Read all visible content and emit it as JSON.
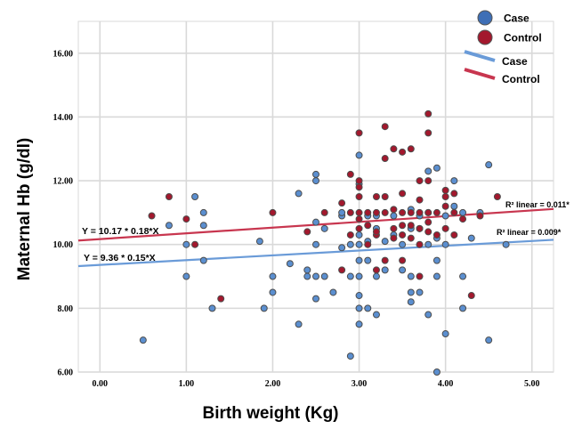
{
  "chart_data": {
    "type": "scatter",
    "xlabel": "Birth weight (Kg)",
    "ylabel": "Maternal Hb (g/dl)",
    "xlim": [
      -0.25,
      5.25
    ],
    "ylim": [
      6.0,
      17.0
    ],
    "x_ticks": [
      "0.00",
      "1.00",
      "2.00",
      "3.00",
      "4.00",
      "5.00"
    ],
    "y_ticks": [
      "6.00",
      "8.00",
      "10.00",
      "12.00",
      "14.00",
      "16.00"
    ],
    "grid": true,
    "legend_position": "top-right",
    "colors": {
      "case": "#3e6fb6",
      "case_line": "#6a9bd8",
      "control": "#a3182d",
      "control_line": "#c8364f"
    },
    "series": [
      {
        "name": "Case",
        "points": [
          [
            0.5,
            7.0
          ],
          [
            0.8,
            10.6
          ],
          [
            1.0,
            9.0
          ],
          [
            1.0,
            10.0
          ],
          [
            1.1,
            11.5
          ],
          [
            1.2,
            11.0
          ],
          [
            1.2,
            10.6
          ],
          [
            1.2,
            9.5
          ],
          [
            1.3,
            8.0
          ],
          [
            1.85,
            10.1
          ],
          [
            1.9,
            8.0
          ],
          [
            2.0,
            8.5
          ],
          [
            2.0,
            9.0
          ],
          [
            2.2,
            9.4
          ],
          [
            2.3,
            7.5
          ],
          [
            2.3,
            11.6
          ],
          [
            2.4,
            9.0
          ],
          [
            2.4,
            9.2
          ],
          [
            2.5,
            12.2
          ],
          [
            2.5,
            12.0
          ],
          [
            2.5,
            10.7
          ],
          [
            2.5,
            10.0
          ],
          [
            2.5,
            9.0
          ],
          [
            2.5,
            8.3
          ],
          [
            2.6,
            10.5
          ],
          [
            2.6,
            9.0
          ],
          [
            2.7,
            8.5
          ],
          [
            2.8,
            9.9
          ],
          [
            2.8,
            10.9
          ],
          [
            2.8,
            11.0
          ],
          [
            2.9,
            10.0
          ],
          [
            2.9,
            6.5
          ],
          [
            2.9,
            9.0
          ],
          [
            3.0,
            12.8
          ],
          [
            3.0,
            11.9
          ],
          [
            3.0,
            10.3
          ],
          [
            3.0,
            9.5
          ],
          [
            3.0,
            9.0
          ],
          [
            3.0,
            8.4
          ],
          [
            3.0,
            8.0
          ],
          [
            3.0,
            7.5
          ],
          [
            3.0,
            10.0
          ],
          [
            3.1,
            9.5
          ],
          [
            3.1,
            8.0
          ],
          [
            3.1,
            10.1
          ],
          [
            3.1,
            10.9
          ],
          [
            3.2,
            7.8
          ],
          [
            3.2,
            9.0
          ],
          [
            3.2,
            10.9
          ],
          [
            3.2,
            10.5
          ],
          [
            3.3,
            10.1
          ],
          [
            3.3,
            9.2
          ],
          [
            3.4,
            10.3
          ],
          [
            3.4,
            10.9
          ],
          [
            3.5,
            10.0
          ],
          [
            3.5,
            9.2
          ],
          [
            3.6,
            10.5
          ],
          [
            3.6,
            11.1
          ],
          [
            3.6,
            8.2
          ],
          [
            3.6,
            8.5
          ],
          [
            3.6,
            9.0
          ],
          [
            3.7,
            10.5
          ],
          [
            3.7,
            10.9
          ],
          [
            3.7,
            8.5
          ],
          [
            3.8,
            12.3
          ],
          [
            3.8,
            10.0
          ],
          [
            3.8,
            11.0
          ],
          [
            3.8,
            7.8
          ],
          [
            3.9,
            12.4
          ],
          [
            3.9,
            10.2
          ],
          [
            3.9,
            9.5
          ],
          [
            3.9,
            9.0
          ],
          [
            3.9,
            6.0
          ],
          [
            4.0,
            10.9
          ],
          [
            4.0,
            10.0
          ],
          [
            4.0,
            7.2
          ],
          [
            4.1,
            12.0
          ],
          [
            4.1,
            11.2
          ],
          [
            4.2,
            11.0
          ],
          [
            4.2,
            9.0
          ],
          [
            4.2,
            8.0
          ],
          [
            4.3,
            10.2
          ],
          [
            4.4,
            11.0
          ],
          [
            4.5,
            12.5
          ],
          [
            4.5,
            7.0
          ],
          [
            4.7,
            10.0
          ]
        ]
      },
      {
        "name": "Control",
        "points": [
          [
            0.6,
            10.9
          ],
          [
            0.8,
            11.5
          ],
          [
            1.0,
            10.8
          ],
          [
            1.1,
            10.0
          ],
          [
            1.4,
            8.3
          ],
          [
            2.0,
            11.0
          ],
          [
            2.4,
            10.4
          ],
          [
            2.6,
            11.0
          ],
          [
            2.8,
            11.3
          ],
          [
            2.8,
            9.2
          ],
          [
            2.9,
            11.0
          ],
          [
            2.9,
            10.3
          ],
          [
            2.9,
            12.2
          ],
          [
            3.0,
            13.5
          ],
          [
            3.0,
            11.8
          ],
          [
            3.0,
            11.5
          ],
          [
            3.0,
            11.0
          ],
          [
            3.0,
            10.5
          ],
          [
            3.0,
            10.8
          ],
          [
            3.0,
            12.0
          ],
          [
            3.1,
            11.0
          ],
          [
            3.1,
            10.6
          ],
          [
            3.1,
            10.0
          ],
          [
            3.2,
            11.5
          ],
          [
            3.2,
            11.0
          ],
          [
            3.2,
            10.3
          ],
          [
            3.2,
            10.4
          ],
          [
            3.2,
            9.2
          ],
          [
            3.3,
            13.7
          ],
          [
            3.3,
            12.7
          ],
          [
            3.3,
            11.5
          ],
          [
            3.3,
            11.0
          ],
          [
            3.3,
            9.5
          ],
          [
            3.4,
            13.0
          ],
          [
            3.4,
            11.1
          ],
          [
            3.4,
            10.2
          ],
          [
            3.4,
            10.5
          ],
          [
            3.5,
            12.9
          ],
          [
            3.5,
            11.6
          ],
          [
            3.5,
            11.0
          ],
          [
            3.5,
            10.3
          ],
          [
            3.5,
            10.6
          ],
          [
            3.5,
            9.5
          ],
          [
            3.6,
            13.0
          ],
          [
            3.6,
            11.0
          ],
          [
            3.6,
            10.2
          ],
          [
            3.6,
            10.6
          ],
          [
            3.7,
            12.0
          ],
          [
            3.7,
            11.4
          ],
          [
            3.7,
            11.0
          ],
          [
            3.7,
            10.5
          ],
          [
            3.7,
            10.0
          ],
          [
            3.7,
            9.0
          ],
          [
            3.8,
            14.1
          ],
          [
            3.8,
            13.5
          ],
          [
            3.8,
            12.0
          ],
          [
            3.8,
            11.0
          ],
          [
            3.8,
            10.4
          ],
          [
            3.8,
            10.7
          ],
          [
            3.9,
            11.0
          ],
          [
            3.9,
            10.3
          ],
          [
            4.0,
            11.7
          ],
          [
            4.0,
            11.5
          ],
          [
            4.0,
            11.2
          ],
          [
            4.0,
            10.5
          ],
          [
            4.1,
            11.6
          ],
          [
            4.1,
            11.0
          ],
          [
            4.1,
            10.3
          ],
          [
            4.2,
            10.8
          ],
          [
            4.3,
            8.4
          ],
          [
            4.4,
            10.9
          ],
          [
            4.6,
            11.5
          ]
        ]
      }
    ],
    "fit_lines": [
      {
        "series": "Control",
        "intercept": 10.17,
        "slope": 0.18,
        "equation": "Y = 10.17 * 0.18*X",
        "r2_label": "R² linear = 0.011*"
      },
      {
        "series": "Case",
        "intercept": 9.36,
        "slope": 0.15,
        "equation": "Y = 9.36 * 0.15*X",
        "r2_label": "R² linear = 0.009*"
      }
    ],
    "legend": {
      "markers": [
        {
          "label": "Case",
          "key": "case"
        },
        {
          "label": "Control",
          "key": "control"
        }
      ],
      "lines": [
        {
          "label": "Case",
          "key": "case_line"
        },
        {
          "label": "Control",
          "key": "control_line"
        }
      ]
    }
  }
}
